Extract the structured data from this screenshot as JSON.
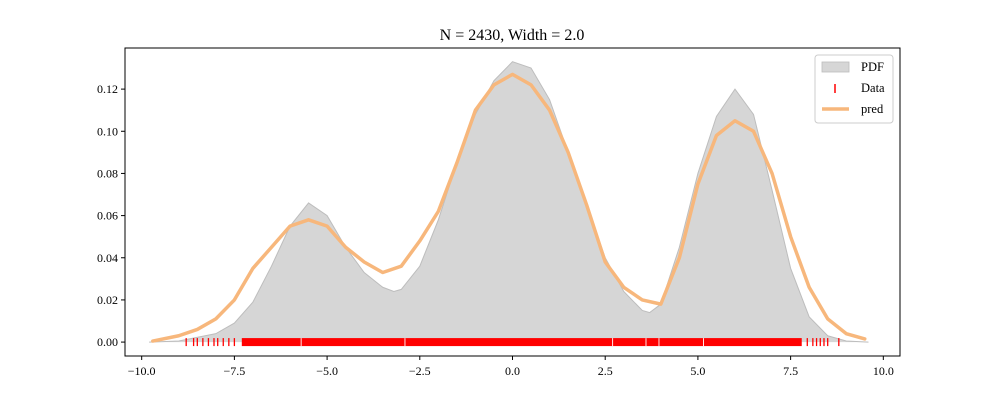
{
  "chart_data": {
    "type": "area",
    "title": "N = 2430, Width = 2.0",
    "xlabel": "",
    "ylabel": "",
    "xlim": [
      -10.45,
      10.45
    ],
    "ylim": [
      -0.0066,
      0.1395
    ],
    "xticks": [
      -10.0,
      -7.5,
      -5.0,
      -2.5,
      0.0,
      2.5,
      5.0,
      7.5,
      10.0
    ],
    "xtick_labels": [
      "−10.0",
      "−7.5",
      "−5.0",
      "−2.5",
      "0.0",
      "2.5",
      "5.0",
      "7.5",
      "10.0"
    ],
    "yticks": [
      0.0,
      0.02,
      0.04,
      0.06,
      0.08,
      0.1,
      0.12
    ],
    "ytick_labels": [
      "0.00",
      "0.02",
      "0.04",
      "0.06",
      "0.08",
      "0.10",
      "0.12"
    ],
    "grid": false,
    "legend_position": "top-right",
    "legend": [
      "PDF",
      "Data",
      "pred"
    ],
    "colors": {
      "pdf_fill": "#d6d6d6",
      "pdf_edge": "#bdbdbd",
      "data": "#ff0000",
      "pred": "#f7b77c"
    },
    "series": [
      {
        "name": "PDF",
        "type": "area",
        "x": [
          -9.8,
          -9.0,
          -8.0,
          -7.5,
          -7.0,
          -6.5,
          -6.0,
          -5.5,
          -5.0,
          -4.5,
          -4.0,
          -3.5,
          -3.2,
          -3.0,
          -2.5,
          -2.0,
          -1.5,
          -1.0,
          -0.5,
          0.0,
          0.5,
          1.0,
          1.5,
          2.0,
          2.5,
          3.0,
          3.5,
          3.7,
          4.0,
          4.5,
          5.0,
          5.5,
          6.0,
          6.5,
          7.0,
          7.5,
          8.0,
          8.5,
          9.0,
          9.6
        ],
        "y": [
          0.0,
          0.0005,
          0.004,
          0.009,
          0.019,
          0.036,
          0.055,
          0.066,
          0.06,
          0.045,
          0.033,
          0.026,
          0.024,
          0.025,
          0.036,
          0.058,
          0.085,
          0.108,
          0.124,
          0.133,
          0.13,
          0.115,
          0.09,
          0.065,
          0.04,
          0.024,
          0.015,
          0.014,
          0.018,
          0.045,
          0.08,
          0.107,
          0.12,
          0.108,
          0.072,
          0.035,
          0.012,
          0.003,
          0.0005,
          0.0
        ]
      },
      {
        "name": "pred",
        "type": "line",
        "x": [
          -9.7,
          -9.0,
          -8.5,
          -8.0,
          -7.5,
          -7.0,
          -6.5,
          -6.0,
          -5.5,
          -5.0,
          -4.5,
          -4.0,
          -3.5,
          -3.0,
          -2.5,
          -2.0,
          -1.5,
          -1.0,
          -0.5,
          0.0,
          0.5,
          1.0,
          1.5,
          2.0,
          2.5,
          3.0,
          3.5,
          4.0,
          4.5,
          5.0,
          5.5,
          6.0,
          6.5,
          7.0,
          7.5,
          8.0,
          8.5,
          9.0,
          9.5
        ],
        "y": [
          0.0005,
          0.003,
          0.006,
          0.011,
          0.02,
          0.035,
          0.045,
          0.055,
          0.058,
          0.055,
          0.045,
          0.038,
          0.033,
          0.036,
          0.048,
          0.062,
          0.085,
          0.11,
          0.122,
          0.127,
          0.122,
          0.11,
          0.09,
          0.065,
          0.038,
          0.026,
          0.02,
          0.018,
          0.04,
          0.075,
          0.098,
          0.105,
          0.1,
          0.08,
          0.05,
          0.026,
          0.011,
          0.004,
          0.0015
        ]
      },
      {
        "name": "Data",
        "type": "rug",
        "range": [
          -8.8,
          8.8
        ],
        "dense_range": [
          -7.3,
          7.8
        ],
        "outliers": [
          -8.8,
          -8.6,
          -8.5,
          -8.35,
          -8.2,
          -8.05,
          -7.95,
          -7.8,
          -7.65,
          -7.5,
          7.95,
          8.1,
          8.2,
          8.3,
          8.4,
          8.5,
          8.8
        ]
      }
    ]
  }
}
